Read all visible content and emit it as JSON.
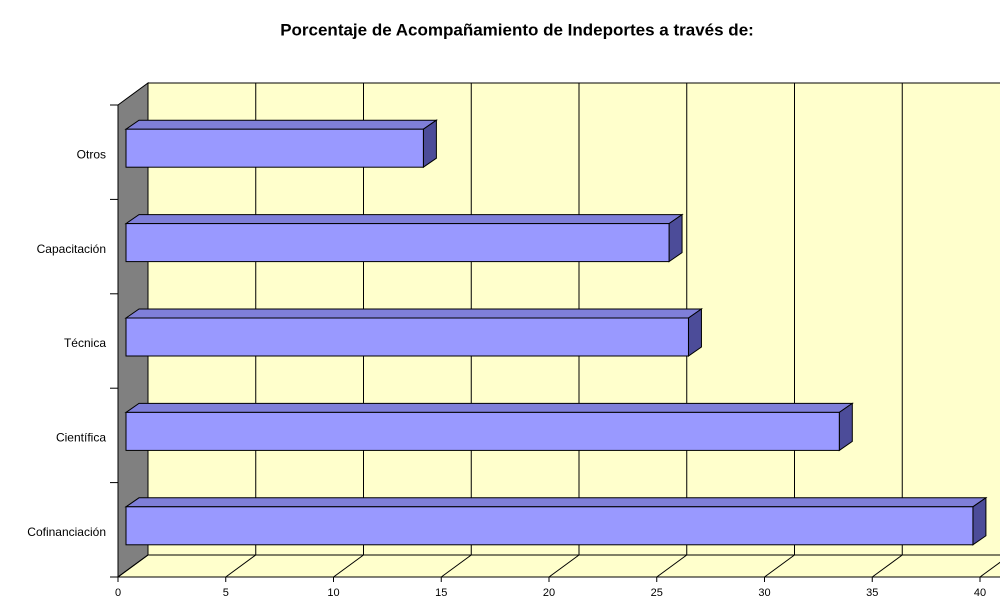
{
  "chart_data": {
    "type": "bar3d_horizontal",
    "title": "Porcentaje de Acompañamiento de Indeportes a través de:",
    "categories": [
      "Cofinanciación",
      "Científica",
      "Técnica",
      "Capacitación",
      "Otros"
    ],
    "values": [
      39.3,
      33.1,
      26.1,
      25.2,
      13.8
    ],
    "color": "#9999ff",
    "xlim": [
      0,
      40
    ],
    "xticks": [
      0,
      5,
      10,
      15,
      20,
      25,
      30,
      35,
      40
    ],
    "grid": true
  }
}
